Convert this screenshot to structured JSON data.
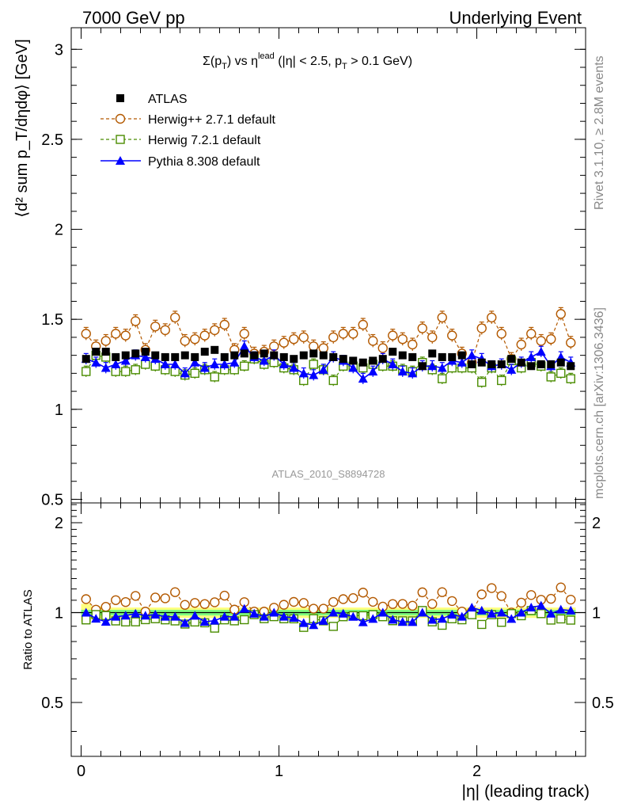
{
  "header": {
    "left": "7000 GeV pp",
    "right": "Underlying Event"
  },
  "side": {
    "rivet": "Rivet 3.1.10, ≥ 2.8M events",
    "mcplots": "mcplots.cern.ch [arXiv:1306.3436]"
  },
  "chart_data": [
    {
      "type": "scatter",
      "title_main": "Σ(p",
      "title_sub1": "T",
      "title_mid": ") vs η",
      "title_sup": "lead",
      "title_tail": " (|η| < 2.5, p",
      "title_sub2": "T",
      "title_end": " > 0.1 GeV)",
      "ylabel": "⟨d² sum p_T/dηdφ⟩ [GeV]",
      "analysis": "ATLAS_2010_S8894728",
      "ylim": [
        0.48,
        3.12
      ],
      "xlim": [
        -0.05,
        2.55
      ],
      "yticks": [
        "3",
        "2.5",
        "2",
        "1.5",
        "1",
        "0.5"
      ],
      "x": [
        0.025,
        0.075,
        0.125,
        0.175,
        0.225,
        0.275,
        0.325,
        0.375,
        0.425,
        0.475,
        0.525,
        0.575,
        0.625,
        0.675,
        0.725,
        0.775,
        0.825,
        0.875,
        0.925,
        0.975,
        1.025,
        1.075,
        1.125,
        1.175,
        1.225,
        1.275,
        1.325,
        1.375,
        1.425,
        1.475,
        1.525,
        1.575,
        1.625,
        1.675,
        1.725,
        1.775,
        1.825,
        1.875,
        1.925,
        1.975,
        2.025,
        2.075,
        2.125,
        2.175,
        2.225,
        2.275,
        2.325,
        2.375,
        2.425,
        2.475
      ],
      "series": [
        {
          "name": "ATLAS",
          "color": "#000000",
          "values": [
            1.28,
            1.32,
            1.32,
            1.29,
            1.3,
            1.31,
            1.32,
            1.3,
            1.29,
            1.29,
            1.3,
            1.29,
            1.32,
            1.33,
            1.29,
            1.3,
            1.31,
            1.3,
            1.31,
            1.3,
            1.29,
            1.28,
            1.3,
            1.31,
            1.3,
            1.29,
            1.28,
            1.27,
            1.26,
            1.27,
            1.28,
            1.32,
            1.3,
            1.29,
            1.24,
            1.31,
            1.29,
            1.29,
            1.3,
            1.25,
            1.26,
            1.25,
            1.25,
            1.28,
            1.26,
            1.24,
            1.25,
            1.25,
            1.26,
            1.24
          ]
        },
        {
          "name": "Herwig++ 2.7.1 default",
          "color": "#b35900",
          "values": [
            1.42,
            1.35,
            1.38,
            1.42,
            1.41,
            1.49,
            1.33,
            1.46,
            1.44,
            1.51,
            1.38,
            1.39,
            1.41,
            1.44,
            1.47,
            1.33,
            1.42,
            1.31,
            1.32,
            1.35,
            1.37,
            1.39,
            1.4,
            1.35,
            1.34,
            1.4,
            1.42,
            1.42,
            1.47,
            1.38,
            1.34,
            1.41,
            1.39,
            1.36,
            1.45,
            1.4,
            1.51,
            1.41,
            1.31,
            1.26,
            1.45,
            1.51,
            1.42,
            1.28,
            1.36,
            1.42,
            1.38,
            1.39,
            1.53,
            1.37
          ]
        },
        {
          "name": "Herwig 7.2.1 default",
          "color": "#4a8c00",
          "values": [
            1.21,
            1.3,
            1.29,
            1.21,
            1.21,
            1.22,
            1.25,
            1.24,
            1.22,
            1.21,
            1.19,
            1.2,
            1.22,
            1.18,
            1.22,
            1.22,
            1.24,
            1.28,
            1.25,
            1.26,
            1.23,
            1.22,
            1.16,
            1.25,
            1.22,
            1.16,
            1.24,
            1.24,
            1.23,
            1.25,
            1.24,
            1.24,
            1.22,
            1.21,
            1.26,
            1.22,
            1.17,
            1.23,
            1.23,
            1.23,
            1.15,
            1.23,
            1.16,
            1.27,
            1.23,
            1.26,
            1.24,
            1.18,
            1.2,
            1.17
          ]
        },
        {
          "name": "Pythia 8.308 default",
          "color": "#0000ff",
          "values": [
            1.28,
            1.26,
            1.23,
            1.25,
            1.27,
            1.3,
            1.29,
            1.28,
            1.25,
            1.25,
            1.2,
            1.26,
            1.23,
            1.25,
            1.25,
            1.26,
            1.35,
            1.29,
            1.27,
            1.3,
            1.25,
            1.23,
            1.2,
            1.19,
            1.22,
            1.29,
            1.27,
            1.23,
            1.17,
            1.21,
            1.28,
            1.25,
            1.21,
            1.2,
            1.24,
            1.24,
            1.23,
            1.27,
            1.26,
            1.3,
            1.28,
            1.24,
            1.25,
            1.22,
            1.26,
            1.29,
            1.32,
            1.24,
            1.29,
            1.26
          ]
        }
      ]
    },
    {
      "type": "scatter",
      "ylabel": "Ratio to ATLAS",
      "xlabel": "|η| (leading track)",
      "ylim": [
        0.33,
        2.33
      ],
      "xlim": [
        -0.05,
        2.55
      ],
      "yticks_left": [
        "2",
        "1",
        "0.5"
      ],
      "yticks_right": [
        "2",
        "1",
        "0.5"
      ],
      "xticks": [
        "0",
        "1",
        "2"
      ],
      "band_inner_color": "#7fff7f",
      "band_outer_color": "#ffff7f"
    }
  ]
}
